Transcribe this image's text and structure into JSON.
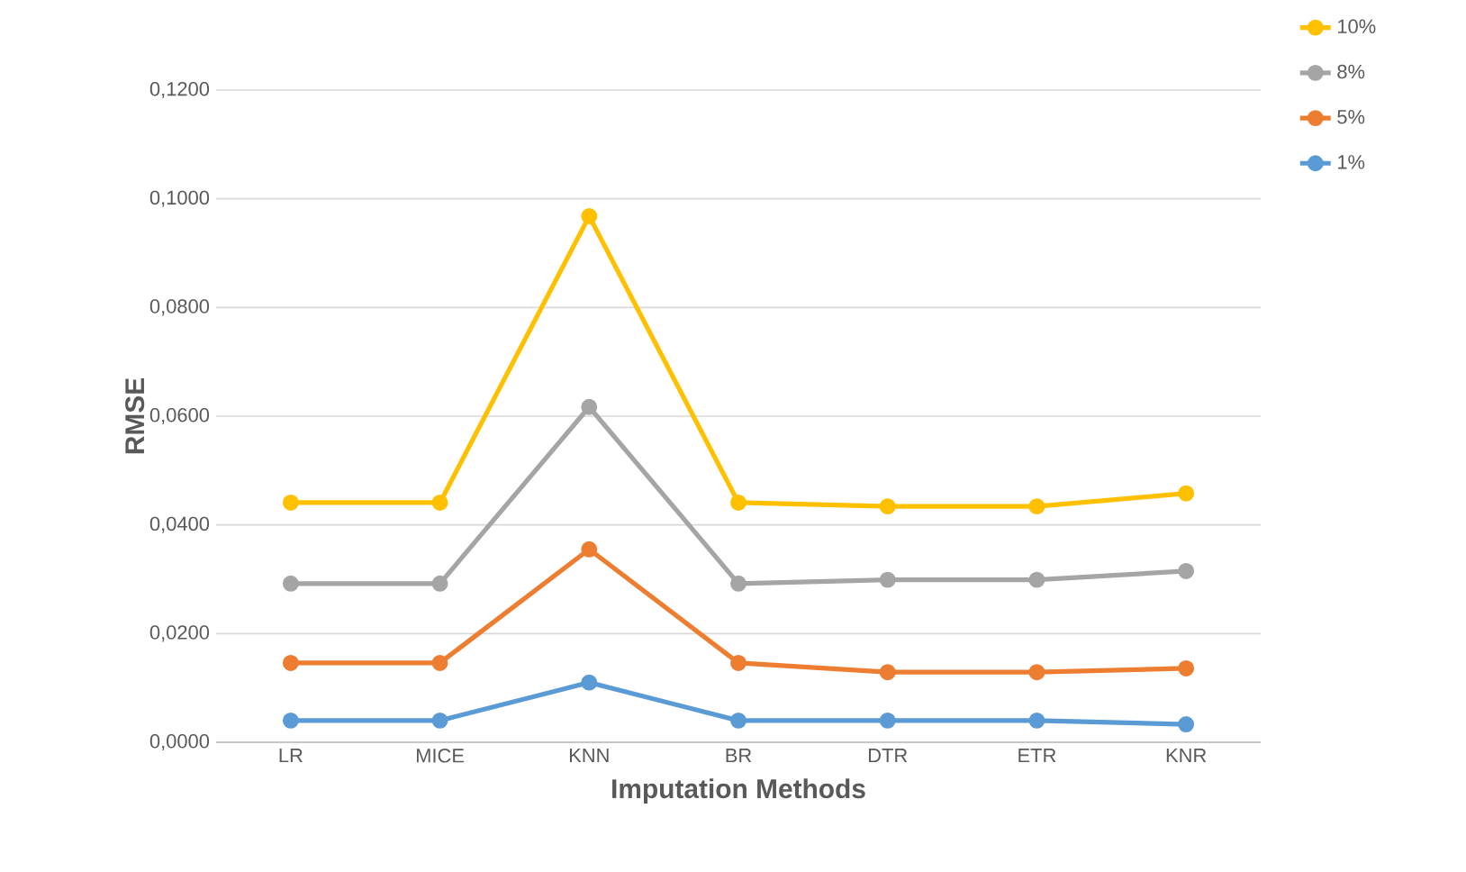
{
  "chart_data": {
    "type": "line",
    "xlabel": "Imputation Methods",
    "ylabel": "RMSE",
    "categories": [
      "LR",
      "MICE",
      "KNN",
      "BR",
      "DTR",
      "ETR",
      "KNR"
    ],
    "series": [
      {
        "name": "10%",
        "color": "#ffc000",
        "values": [
          0.0441,
          0.0441,
          0.0968,
          0.0441,
          0.0434,
          0.0434,
          0.0458
        ]
      },
      {
        "name": "8%",
        "color": "#a5a5a5",
        "values": [
          0.0292,
          0.0292,
          0.0617,
          0.0292,
          0.0299,
          0.0299,
          0.0315
        ]
      },
      {
        "name": "5%",
        "color": "#ed7d31",
        "values": [
          0.0146,
          0.0146,
          0.0355,
          0.0146,
          0.0129,
          0.0129,
          0.0136
        ]
      },
      {
        "name": "1%",
        "color": "#5b9bd5",
        "values": [
          0.004,
          0.004,
          0.011,
          0.004,
          0.004,
          0.004,
          0.0033
        ]
      }
    ],
    "ylim": [
      0,
      0.12
    ],
    "yticks": [
      {
        "value": 0,
        "label": "0,0000"
      },
      {
        "value": 0.02,
        "label": "0,0200"
      },
      {
        "value": 0.04,
        "label": "0,0400"
      },
      {
        "value": 0.06,
        "label": "0,0600"
      },
      {
        "value": 0.08,
        "label": "0,0800"
      },
      {
        "value": 0.1,
        "label": "0,1000"
      },
      {
        "value": 0.12,
        "label": "0,1200"
      }
    ],
    "grid": "y",
    "legend": "top right",
    "marker": "circle",
    "line_style": "solid"
  }
}
